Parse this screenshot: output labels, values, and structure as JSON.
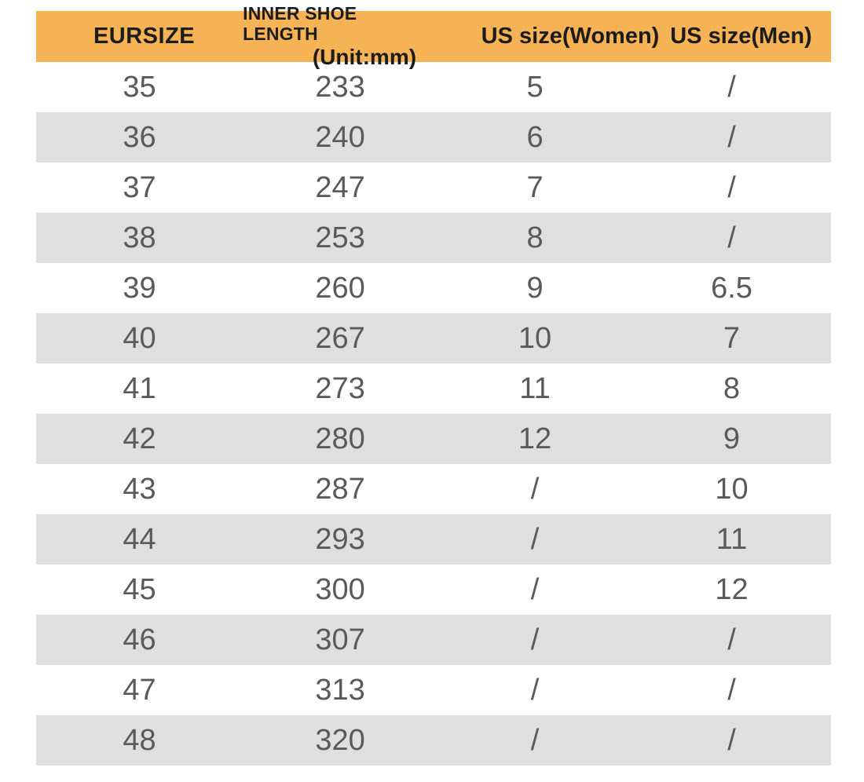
{
  "table": {
    "colors": {
      "header_bg": "#f6b355",
      "header_text": "#1c1c1c",
      "row_odd_bg": "#ffffff",
      "row_even_bg": "#dfdfdf",
      "data_text": "#5a5a5a"
    },
    "headers": {
      "eu": "EURSIZE",
      "length_line1": "INNER SHOE LENGTH",
      "length_line2": "(Unit:mm)",
      "women": "US size(Women)",
      "men": "US size(Men)"
    },
    "rows": [
      {
        "eu": "35",
        "length": "233",
        "women": "5",
        "men": "/"
      },
      {
        "eu": "36",
        "length": "240",
        "women": "6",
        "men": "/"
      },
      {
        "eu": "37",
        "length": "247",
        "women": "7",
        "men": "/"
      },
      {
        "eu": "38",
        "length": "253",
        "women": "8",
        "men": "/"
      },
      {
        "eu": "39",
        "length": "260",
        "women": "9",
        "men": "6.5"
      },
      {
        "eu": "40",
        "length": "267",
        "women": "10",
        "men": "7"
      },
      {
        "eu": "41",
        "length": "273",
        "women": "11",
        "men": "8"
      },
      {
        "eu": "42",
        "length": "280",
        "women": "12",
        "men": "9"
      },
      {
        "eu": "43",
        "length": "287",
        "women": "/",
        "men": "10"
      },
      {
        "eu": "44",
        "length": "293",
        "women": "/",
        "men": "11"
      },
      {
        "eu": "45",
        "length": "300",
        "women": "/",
        "men": "12"
      },
      {
        "eu": "46",
        "length": "307",
        "women": "/",
        "men": "/"
      },
      {
        "eu": "47",
        "length": "313",
        "women": "/",
        "men": "/"
      },
      {
        "eu": "48",
        "length": "320",
        "women": "/",
        "men": "/"
      }
    ]
  },
  "chart_data": {
    "type": "table",
    "title": "EU to US shoe size conversion with inner shoe length",
    "columns": [
      "EURSIZE",
      "INNER SHOE LENGTH (Unit:mm)",
      "US size(Women)",
      "US size(Men)"
    ],
    "rows": [
      [
        "35",
        "233",
        "5",
        "/"
      ],
      [
        "36",
        "240",
        "6",
        "/"
      ],
      [
        "37",
        "247",
        "7",
        "/"
      ],
      [
        "38",
        "253",
        "8",
        "/"
      ],
      [
        "39",
        "260",
        "9",
        "6.5"
      ],
      [
        "40",
        "267",
        "10",
        "7"
      ],
      [
        "41",
        "273",
        "11",
        "8"
      ],
      [
        "42",
        "280",
        "12",
        "9"
      ],
      [
        "43",
        "287",
        "/",
        "10"
      ],
      [
        "44",
        "293",
        "/",
        "11"
      ],
      [
        "45",
        "300",
        "/",
        "12"
      ],
      [
        "46",
        "307",
        "/",
        "/"
      ],
      [
        "47",
        "313",
        "/",
        "/"
      ],
      [
        "48",
        "320",
        "/",
        "/"
      ]
    ],
    "layout": {
      "header_fill": "#f6b355",
      "alternating_row_fill": "#dfdfdf",
      "grid": false
    }
  }
}
